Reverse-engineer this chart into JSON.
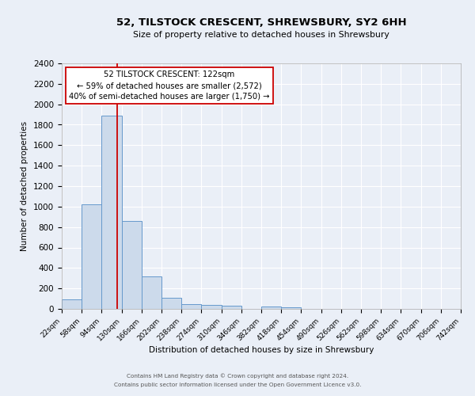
{
  "title": "52, TILSTOCK CRESCENT, SHREWSBURY, SY2 6HH",
  "subtitle": "Size of property relative to detached houses in Shrewsbury",
  "xlabel": "Distribution of detached houses by size in Shrewsbury",
  "ylabel": "Number of detached properties",
  "bin_edges": [
    22,
    58,
    94,
    130,
    166,
    202,
    238,
    274,
    310,
    346,
    382,
    418,
    454,
    490,
    526,
    562,
    598,
    634,
    670,
    706,
    742
  ],
  "bin_counts": [
    90,
    1025,
    1890,
    860,
    320,
    110,
    50,
    35,
    30,
    0,
    20,
    15,
    0,
    0,
    0,
    0,
    0,
    0,
    0,
    0
  ],
  "bar_facecolor": "#ccdaeb",
  "bar_edgecolor": "#6699cc",
  "vline_x": 122,
  "vline_color": "#cc0000",
  "annotation_line1": "52 TILSTOCK CRESCENT: 122sqm",
  "annotation_line2": "← 59% of detached houses are smaller (2,572)",
  "annotation_line3": "40% of semi-detached houses are larger (1,750) →",
  "ylim": [
    0,
    2400
  ],
  "yticks": [
    0,
    200,
    400,
    600,
    800,
    1000,
    1200,
    1400,
    1600,
    1800,
    2000,
    2200,
    2400
  ],
  "bg_color": "#eaeff7",
  "grid_color": "#ffffff",
  "footer_line1": "Contains HM Land Registry data © Crown copyright and database right 2024.",
  "footer_line2": "Contains public sector information licensed under the Open Government Licence v3.0."
}
